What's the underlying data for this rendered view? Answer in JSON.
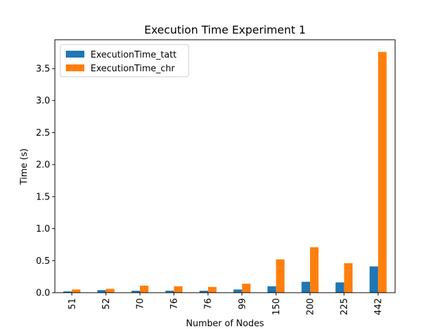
{
  "chart_data": {
    "type": "bar",
    "title": "Execution Time Experiment 1",
    "xlabel": "Number of Nodes",
    "ylabel": "Time (s)",
    "categories": [
      "51",
      "52",
      "70",
      "76",
      "76",
      "99",
      "150",
      "200",
      "225",
      "442"
    ],
    "series": [
      {
        "name": "ExecutionTime_tatt",
        "color": "#1f77b4",
        "values": [
          0.02,
          0.04,
          0.03,
          0.03,
          0.03,
          0.05,
          0.1,
          0.17,
          0.16,
          0.41
        ]
      },
      {
        "name": "ExecutionTime_chr",
        "color": "#ff7f0e",
        "values": [
          0.05,
          0.06,
          0.11,
          0.1,
          0.09,
          0.14,
          0.52,
          0.71,
          0.46,
          3.76
        ]
      }
    ],
    "ylim": [
      0,
      3.95
    ],
    "yticks": [
      0.0,
      0.5,
      1.0,
      1.5,
      2.0,
      2.5,
      3.0,
      3.5
    ],
    "ytick_labels": [
      "0.0",
      "0.5",
      "1.0",
      "1.5",
      "2.0",
      "2.5",
      "3.0",
      "3.5"
    ],
    "grid": false,
    "legend_position": "upper-left"
  }
}
